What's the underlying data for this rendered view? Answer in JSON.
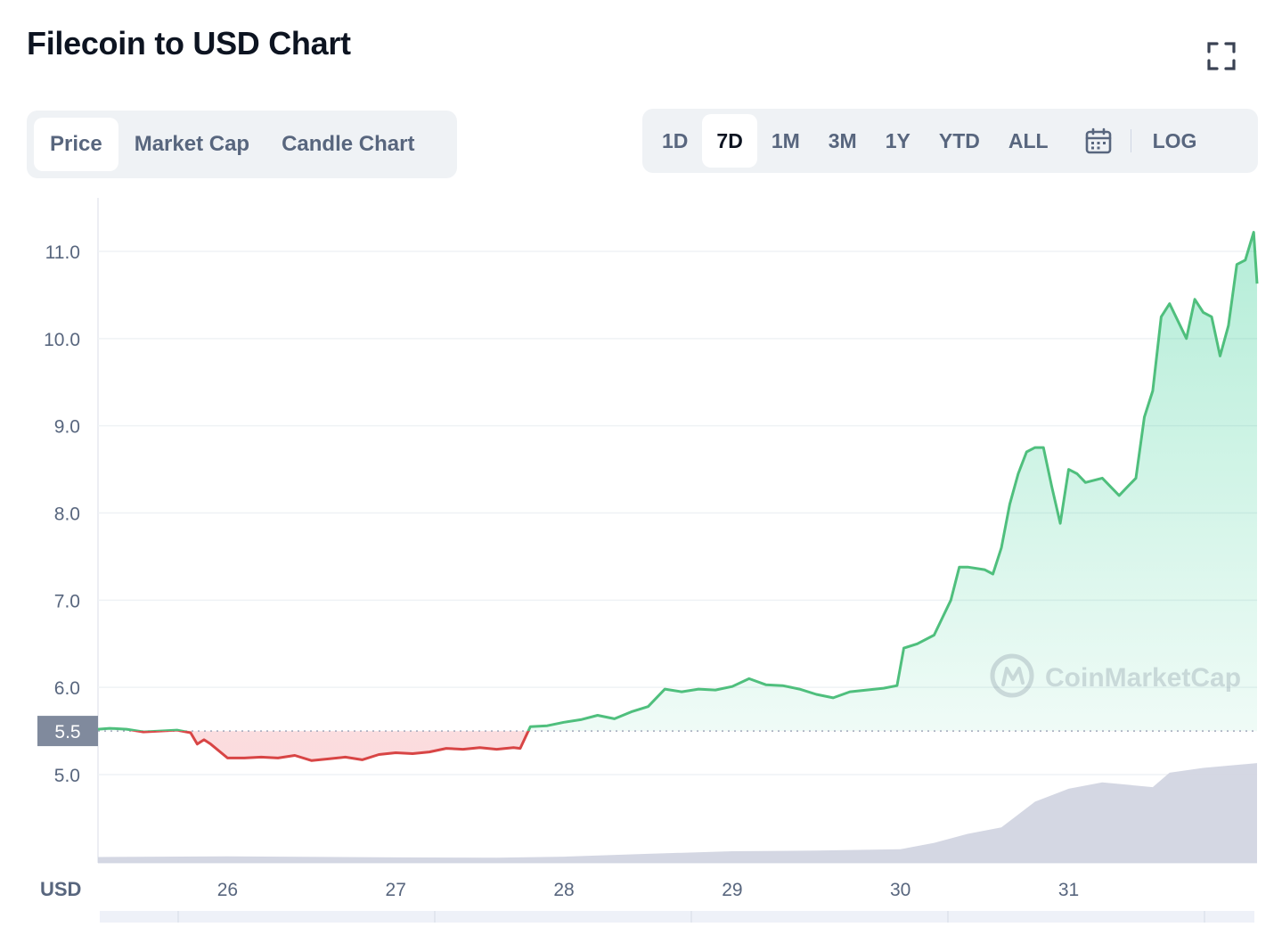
{
  "header": {
    "title": "Filecoin to USD Chart"
  },
  "tabs": [
    {
      "label": "Price",
      "active": true
    },
    {
      "label": "Market Cap",
      "active": false
    },
    {
      "label": "Candle Chart",
      "active": false
    }
  ],
  "ranges": [
    {
      "label": "1D",
      "active": false
    },
    {
      "label": "7D",
      "active": true
    },
    {
      "label": "1M",
      "active": false
    },
    {
      "label": "3M",
      "active": false
    },
    {
      "label": "1Y",
      "active": false
    },
    {
      "label": "YTD",
      "active": false
    },
    {
      "label": "ALL",
      "active": false
    }
  ],
  "toolbar": {
    "log_label": "LOG",
    "calendar_icon": "calendar-icon",
    "fullscreen_icon": "fullscreen-icon"
  },
  "watermark": {
    "text": "CoinMarketCap"
  },
  "chart_data": {
    "type": "area",
    "y_unit_label": "USD",
    "y_ticks": [
      5.0,
      6.0,
      7.0,
      8.0,
      9.0,
      10.0,
      11.0
    ],
    "ylim": [
      4.0,
      11.6
    ],
    "x_ticks": [
      26,
      27,
      28,
      29,
      30,
      31
    ],
    "xlim": [
      25.23,
      32.12
    ],
    "reference_price": 5.5,
    "reference_label": "5.5",
    "grid": true,
    "colors": {
      "up": "#16c784",
      "up_line": "#4fbf7d",
      "down": "#d84545",
      "volume": "#cfd3e0",
      "grid": "#eff2f5",
      "badge": "#808a9d"
    },
    "price": {
      "x": [
        25.23,
        25.3,
        25.4,
        25.5,
        25.6,
        25.7,
        25.78,
        25.82,
        25.86,
        25.9,
        26.0,
        26.1,
        26.2,
        26.3,
        26.4,
        26.5,
        26.6,
        26.7,
        26.8,
        26.9,
        27.0,
        27.1,
        27.2,
        27.3,
        27.4,
        27.5,
        27.6,
        27.7,
        27.74,
        27.8,
        27.9,
        28.0,
        28.1,
        28.2,
        28.3,
        28.4,
        28.5,
        28.6,
        28.7,
        28.8,
        28.9,
        29.0,
        29.1,
        29.2,
        29.3,
        29.4,
        29.5,
        29.6,
        29.7,
        29.8,
        29.9,
        29.98,
        30.02,
        30.1,
        30.2,
        30.25,
        30.3,
        30.35,
        30.4,
        30.5,
        30.55,
        30.6,
        30.65,
        30.7,
        30.75,
        30.8,
        30.85,
        30.9,
        30.95,
        31.0,
        31.05,
        31.1,
        31.2,
        31.3,
        31.35,
        31.4,
        31.45,
        31.5,
        31.55,
        31.6,
        31.65,
        31.7,
        31.75,
        31.8,
        31.85,
        31.9,
        31.95,
        32.0,
        32.05,
        32.1,
        32.12
      ],
      "y": [
        5.52,
        5.53,
        5.52,
        5.49,
        5.5,
        5.51,
        5.48,
        5.35,
        5.4,
        5.35,
        5.19,
        5.19,
        5.2,
        5.19,
        5.22,
        5.16,
        5.18,
        5.2,
        5.17,
        5.23,
        5.25,
        5.24,
        5.26,
        5.3,
        5.29,
        5.31,
        5.29,
        5.31,
        5.3,
        5.55,
        5.56,
        5.6,
        5.63,
        5.68,
        5.64,
        5.72,
        5.78,
        5.98,
        5.95,
        5.98,
        5.97,
        6.01,
        6.1,
        6.03,
        6.02,
        5.98,
        5.92,
        5.88,
        5.95,
        5.97,
        5.99,
        6.02,
        6.45,
        6.5,
        6.6,
        6.8,
        7.0,
        7.38,
        7.38,
        7.35,
        7.3,
        7.6,
        8.1,
        8.45,
        8.7,
        8.75,
        8.75,
        8.3,
        7.88,
        8.5,
        8.45,
        8.35,
        8.4,
        8.2,
        8.3,
        8.4,
        9.1,
        9.4,
        10.25,
        10.4,
        10.2,
        10.0,
        10.45,
        10.3,
        10.25,
        9.8,
        10.15,
        10.85,
        10.9,
        11.22,
        10.63
      ]
    },
    "volume": {
      "x": [
        25.23,
        26.0,
        27.0,
        27.6,
        28.0,
        28.5,
        29.0,
        29.5,
        30.0,
        30.2,
        30.4,
        30.6,
        30.8,
        31.0,
        31.2,
        31.5,
        31.6,
        31.8,
        32.12
      ],
      "y": [
        0.18,
        0.2,
        0.17,
        0.16,
        0.19,
        0.28,
        0.36,
        0.38,
        0.42,
        0.62,
        0.9,
        1.1,
        1.9,
        2.3,
        2.5,
        2.35,
        2.8,
        2.95,
        3.1
      ]
    }
  }
}
